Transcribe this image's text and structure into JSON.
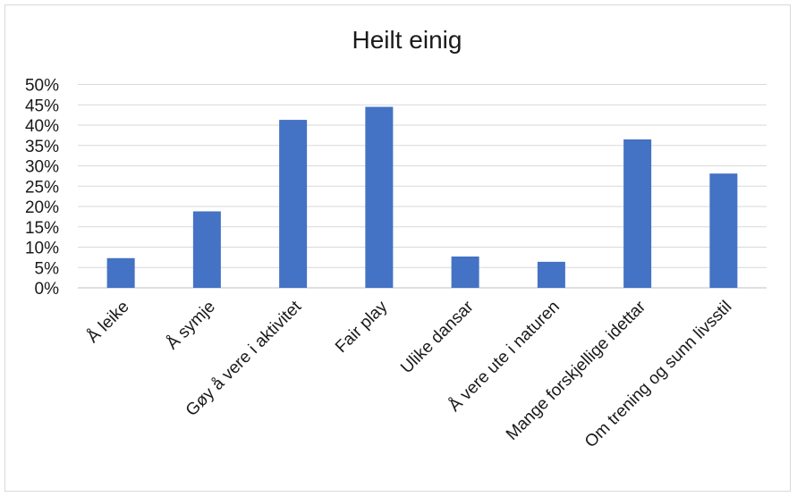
{
  "chart_data": {
    "type": "bar",
    "title": "Heilt einig",
    "xlabel": "",
    "ylabel": "",
    "categories": [
      "Å leike",
      "Å symje",
      "Gøy å vere i aktivitet",
      "Fair play",
      "Ulike dansar",
      "Å vere ute i naturen",
      "Mange forskjellige idettar",
      "Om trening og sunn livsstil"
    ],
    "values": [
      7.3,
      18.8,
      41.3,
      44.5,
      7.7,
      6.4,
      36.5,
      28.1
    ],
    "ylim": [
      0,
      50
    ],
    "yticks": [
      0,
      5,
      10,
      15,
      20,
      25,
      30,
      35,
      40,
      45,
      50
    ],
    "ytick_labels": [
      "0%",
      "5%",
      "10%",
      "15%",
      "20%",
      "25%",
      "30%",
      "35%",
      "40%",
      "45%",
      "50%"
    ],
    "grid": true,
    "legend": "none",
    "colors": {
      "bar": "#4472c4",
      "grid": "#d9d9d9"
    }
  }
}
